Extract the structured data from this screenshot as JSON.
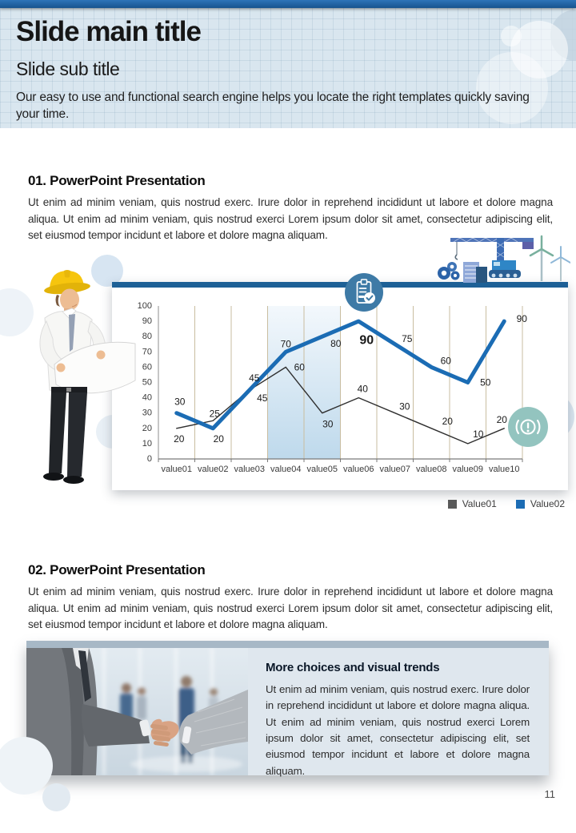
{
  "slide": {
    "title": "Slide main title",
    "subtitle": "Slide sub title",
    "description": "Our easy to use and functional search engine helps you locate the right templates quickly saving your time.",
    "page_number": "11"
  },
  "sections": [
    {
      "heading": "01. PowerPoint Presentation",
      "body": "Ut enim ad minim veniam, quis nostrud exerc. Irure dolor in reprehend incididunt ut labore et dolore magna aliqua. Ut enim ad minim veniam, quis nostrud exerci  Lorem ipsum dolor sit amet, consectetur adipiscing elit, set eiusmod tempor incidunt et labore et dolore magna aliquam."
    },
    {
      "heading": "02. PowerPoint Presentation",
      "body": "Ut enim ad minim veniam, quis nostrud exerc. Irure dolor in reprehend incididunt ut labore et dolore magna aliqua. Ut enim ad minim veniam, quis nostrud exerci  Lorem ipsum dolor sit amet, consectetur adipiscing elit, set eiusmod tempor incidunt et labore et dolore magna aliquam."
    }
  ],
  "callout": {
    "heading": "More choices and visual trends",
    "body": "Ut enim ad minim veniam, quis nostrud exerc. Irure dolor in reprehend incididunt ut labore et dolore magna aliqua. Ut enim ad minim veniam, quis nostrud exerci  Lorem ipsum dolor sit amet, consectetur adipiscing elit, set eiusmod tempor incidunt et labore et dolore magna aliquam."
  },
  "chart_data": {
    "type": "line",
    "categories": [
      "value01",
      "value02",
      "value03",
      "value04",
      "value05",
      "value06",
      "value07",
      "value08",
      "value09",
      "value10"
    ],
    "series": [
      {
        "name": "Value01",
        "color": "#2f2f2f",
        "swatch": "#595959",
        "stroke_width": 1.4,
        "values": [
          20,
          25,
          45,
          60,
          30,
          40,
          30,
          20,
          10,
          20
        ],
        "label_offsets": [
          [
            3,
            13
          ],
          [
            2,
            -9
          ],
          [
            16,
            10
          ],
          [
            17,
            0
          ],
          [
            7,
            14
          ],
          [
            5,
            -11
          ],
          [
            12,
            -8
          ],
          [
            20,
            -9
          ],
          [
            13,
            -12
          ],
          [
            -3,
            -11
          ]
        ]
      },
      {
        "name": "Value02",
        "color": "#1b6cb4",
        "swatch": "#1b6cb4",
        "stroke_width": 5,
        "values": [
          30,
          20,
          45,
          70,
          80,
          90,
          75,
          60,
          50,
          90
        ],
        "label_offsets": [
          [
            4,
            -14
          ],
          [
            7,
            13
          ],
          [
            6,
            -15
          ],
          [
            0,
            -10
          ],
          [
            17,
            9
          ],
          [
            10,
            24
          ],
          [
            15,
            -7
          ],
          [
            18,
            -8
          ],
          [
            22,
            0
          ],
          [
            22,
            -3
          ]
        ]
      }
    ],
    "ylim": [
      0,
      100
    ],
    "ytick_step": 10,
    "grid": "vertical",
    "gridline_color": "#c9bda0",
    "highlight_band": {
      "from_index": 3,
      "to_index": 5
    },
    "emphasized_label": {
      "series_index": 1,
      "point_index": 5
    },
    "legend_position": "bottom-right",
    "title": "",
    "xlabel": "",
    "ylabel": ""
  },
  "icons": {
    "document_check": "clipboard-check",
    "alert": "exclamation-circle",
    "crane_scene": "construction-crane-with-wind-turbines",
    "worker_photo": "engineer-reading-blueprint",
    "handshake_photo": "business-handshake"
  },
  "colors": {
    "top_accent": "#1d5e9e",
    "header_bg": "#d9e6ef",
    "chart_bar": "#1d6096",
    "card_bar": "#a7b8c6",
    "panel_bg": "#dfe7ee",
    "badge_blue": "#3e7aa6",
    "badge_teal": "#93c4bf"
  }
}
